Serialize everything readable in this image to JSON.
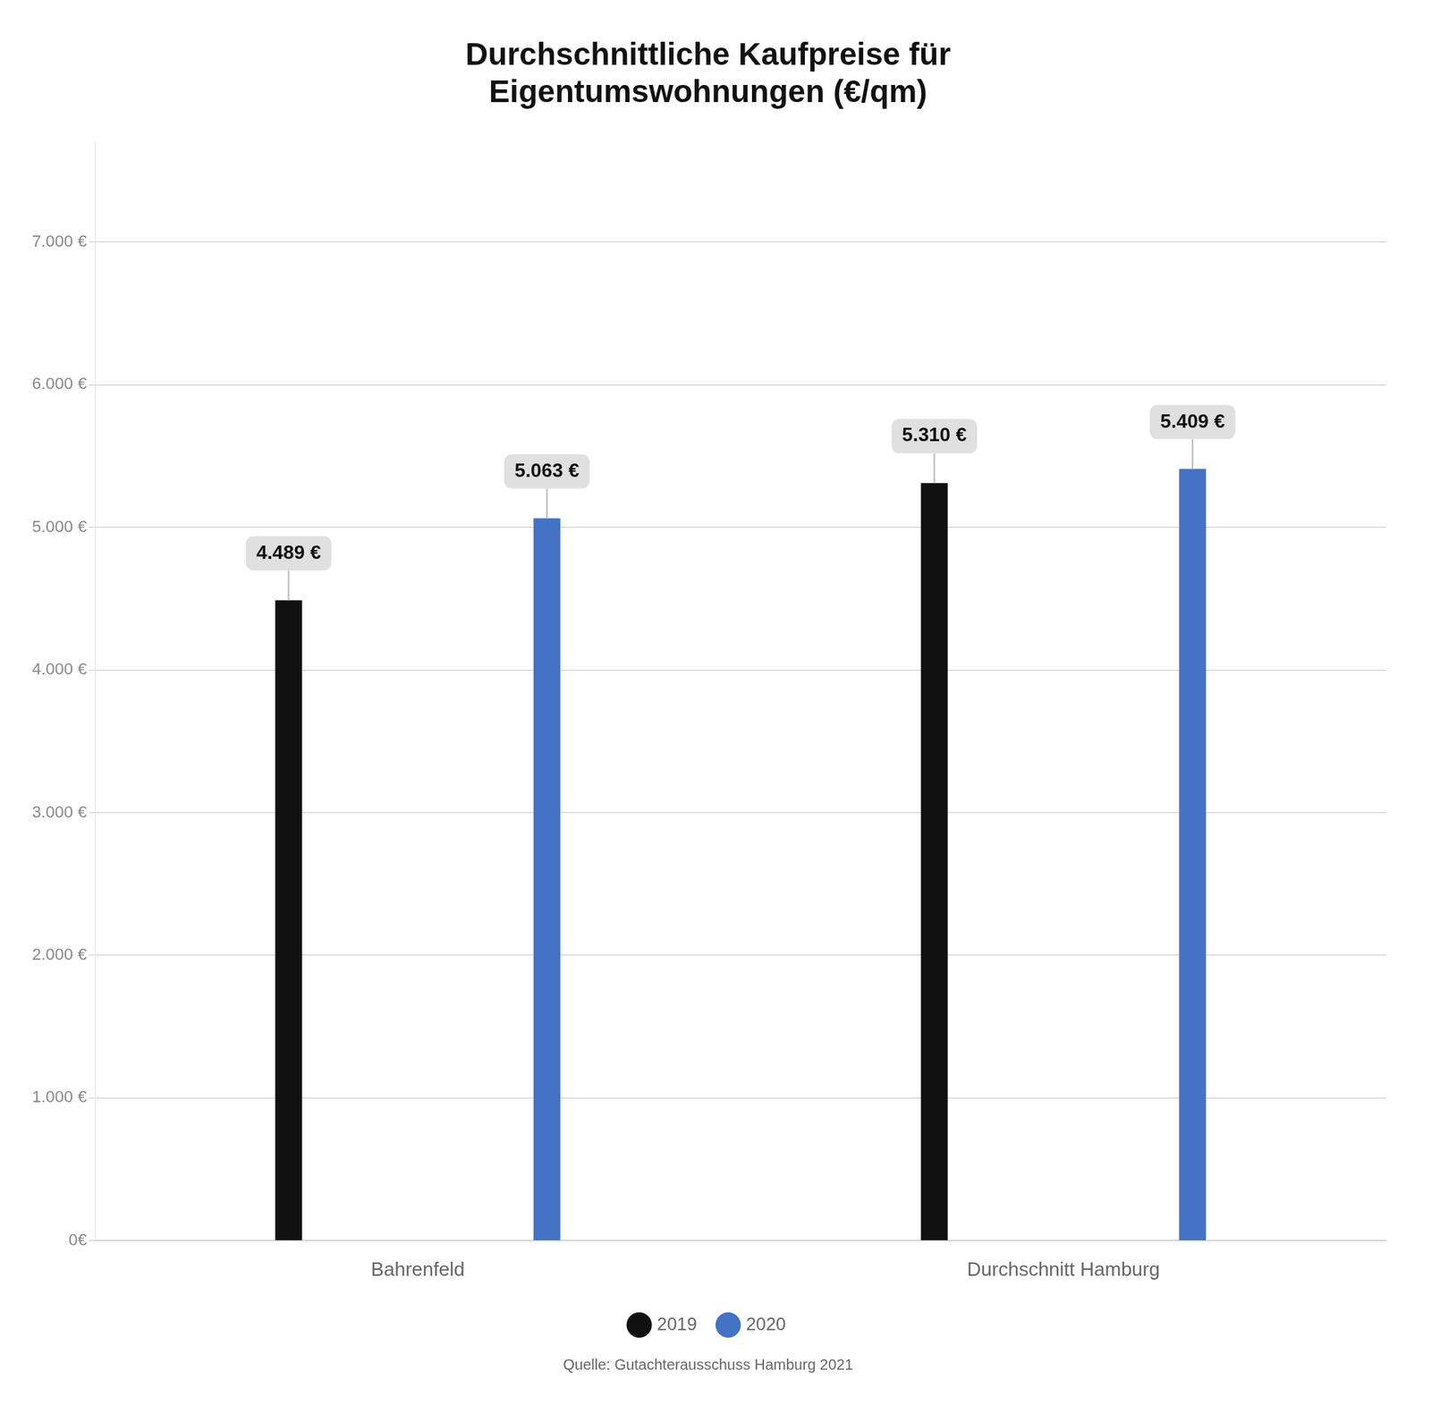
{
  "chart_data": {
    "type": "bar",
    "title": "Durchschnittliche Kaufpreise für\nEigentumswohnungen (€/qm)",
    "source": "Quelle: Gutachterausschuss Hamburg 2021",
    "categories": [
      "Bahrenfeld",
      "Durchschnitt Hamburg"
    ],
    "series": [
      {
        "name": "2019",
        "color": "#111111",
        "values": [
          4489,
          5310
        ],
        "value_labels": [
          "4.489 €",
          "5.310 €"
        ]
      },
      {
        "name": "2020",
        "color": "#4472C4",
        "values": [
          5063,
          5409
        ],
        "value_labels": [
          "5.063 €",
          "5.409 €"
        ]
      }
    ],
    "ylim": [
      0,
      7700
    ],
    "yticks": [
      {
        "value": 0,
        "label": "0€"
      },
      {
        "value": 1000,
        "label": "1.000 €"
      },
      {
        "value": 2000,
        "label": "2.000 €"
      },
      {
        "value": 3000,
        "label": "3.000 €"
      },
      {
        "value": 4000,
        "label": "4.000 €"
      },
      {
        "value": 5000,
        "label": "5.000 €"
      },
      {
        "value": 6000,
        "label": "6.000 €"
      },
      {
        "value": 7000,
        "label": "7.000 €"
      }
    ],
    "grid": true,
    "legend": "bottom",
    "data_labels": true
  }
}
